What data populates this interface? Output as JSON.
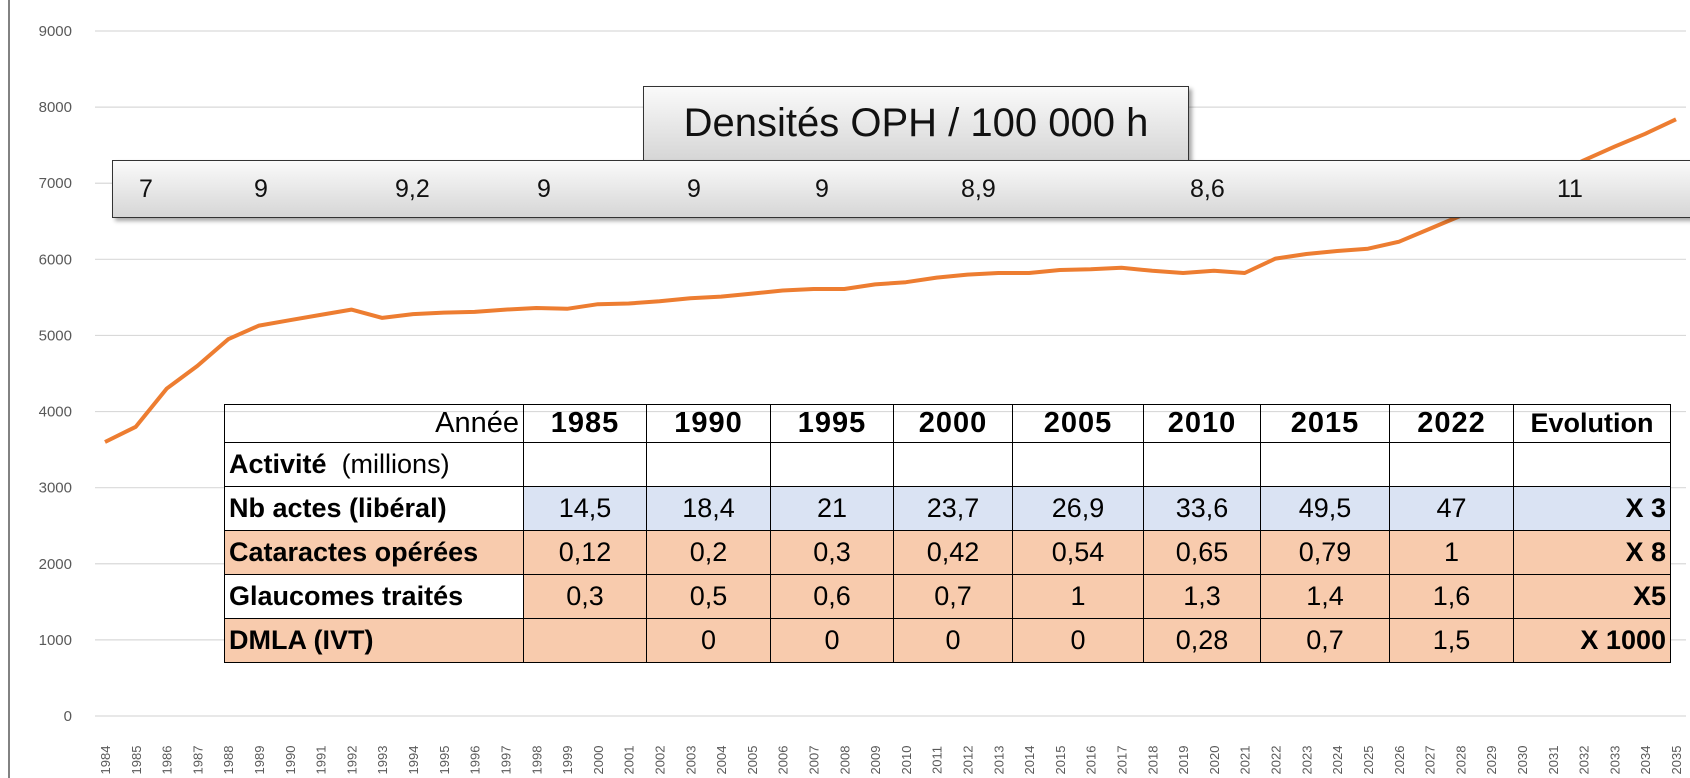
{
  "chart_data": {
    "type": "line",
    "x": [
      1984,
      1985,
      1986,
      1987,
      1988,
      1989,
      1990,
      1991,
      1992,
      1993,
      1994,
      1995,
      1996,
      1997,
      1998,
      1999,
      2000,
      2001,
      2002,
      2003,
      2004,
      2005,
      2006,
      2007,
      2008,
      2009,
      2010,
      2011,
      2012,
      2013,
      2014,
      2015,
      2016,
      2017,
      2018,
      2019,
      2020,
      2021,
      2022,
      2023,
      2024,
      2025,
      2026,
      2027,
      2028,
      2029,
      2030,
      2031,
      2032,
      2033,
      2034,
      2035
    ],
    "values": [
      3600,
      3800,
      4300,
      4600,
      4950,
      5130,
      5200,
      5270,
      5340,
      5230,
      5280,
      5300,
      5310,
      5340,
      5360,
      5350,
      5410,
      5420,
      5450,
      5490,
      5510,
      5550,
      5590,
      5610,
      5610,
      5670,
      5700,
      5760,
      5800,
      5820,
      5820,
      5860,
      5870,
      5890,
      5850,
      5820,
      5850,
      5820,
      6010,
      6070,
      6110,
      6140,
      6230,
      6400,
      6570,
      6750,
      6950,
      7100,
      7300,
      7480,
      7650,
      7840
    ],
    "color": "#ed7d31",
    "xlim": [
      1984,
      2035
    ],
    "ylim": [
      0,
      9000
    ],
    "yticks": [
      0,
      1000,
      2000,
      3000,
      4000,
      5000,
      6000,
      7000,
      8000,
      9000
    ],
    "grid": true
  },
  "densities": {
    "title": "Densités OPH / 100 000 h",
    "labels": [
      "7",
      "9",
      "9,2",
      "9",
      "9",
      "9",
      "8,9",
      "8,6",
      "11"
    ]
  },
  "table": {
    "header": [
      "Année",
      "1985",
      "1990",
      "1995",
      "2000",
      "2005",
      "2010",
      "2015",
      "2022",
      "Evolution"
    ],
    "activity": [
      "Activité",
      "(millions)"
    ],
    "rows": [
      [
        "Nb actes (libéral)",
        "14,5",
        "18,4",
        "21",
        "23,7",
        "26,9",
        "33,6",
        "49,5",
        "47",
        "X 3"
      ],
      [
        "Cataractes opérées",
        "0,12",
        "0,2",
        "0,3",
        "0,42",
        "0,54",
        "0,65",
        "0,79",
        "1",
        "X 8"
      ],
      [
        "Glaucomes traités",
        "0,3",
        "0,5",
        "0,6",
        "0,7",
        "1",
        "1,3",
        "1,4",
        "1,6",
        "X5"
      ],
      [
        "DMLA (IVT)",
        null,
        "0",
        "0",
        "0",
        "0",
        "0,28",
        "0,7",
        "1,5",
        "X 1000"
      ]
    ]
  }
}
